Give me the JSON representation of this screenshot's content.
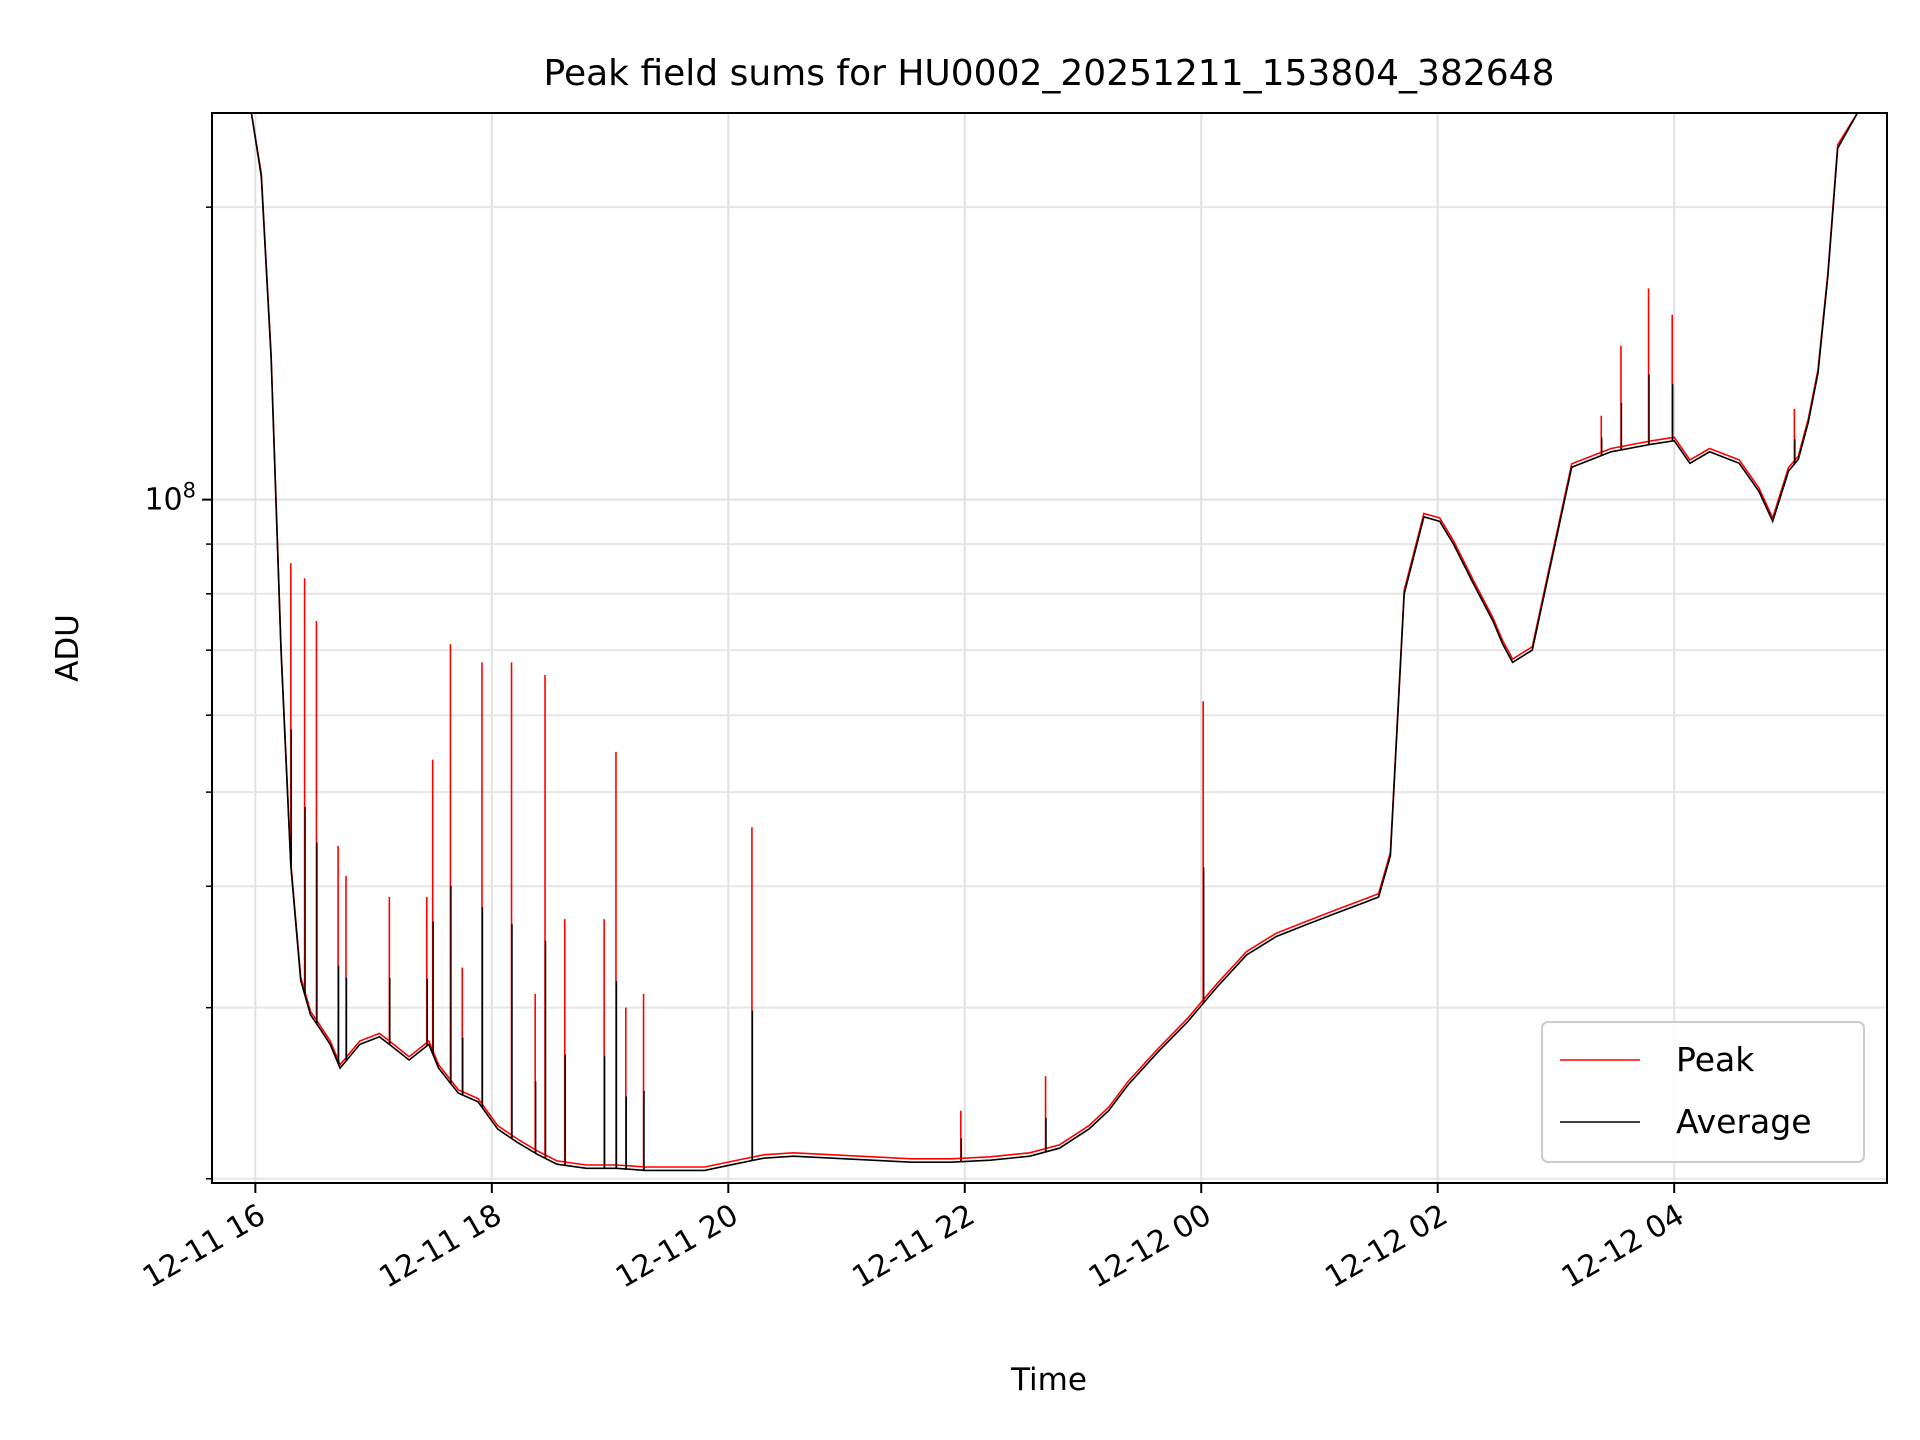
{
  "chart_data": {
    "type": "line",
    "title": "Peak field sums for HU0002_20251211_153804_382648",
    "xlabel": "Time",
    "ylabel": "ADU",
    "yscale": "log",
    "xlim": [
      "2025-12-11 15:38",
      "2025-12-12 05:48"
    ],
    "ylim": [
      19800000,
      250000000
    ],
    "x_ticks": [
      "12-11 16",
      "12-11 18",
      "12-11 20",
      "12-11 22",
      "12-12 00",
      "12-12 02",
      "12-12 04"
    ],
    "y_tick_labels": [
      "10^8"
    ],
    "grid": true,
    "legend": {
      "placement": "lower-right",
      "entries": [
        "Peak",
        "Average"
      ]
    },
    "colors": {
      "Peak": "#ff0000",
      "Average": "#000000"
    },
    "series": [
      {
        "name": "Average",
        "x": [
          "2025-12-11 15:58",
          "2025-12-11 16:03",
          "2025-12-11 16:08",
          "2025-12-11 16:13",
          "2025-12-11 16:18",
          "2025-12-11 16:23",
          "2025-12-11 16:28",
          "2025-12-11 16:33",
          "2025-12-11 16:38",
          "2025-12-11 16:43",
          "2025-12-11 16:53",
          "2025-12-11 17:03",
          "2025-12-11 17:08",
          "2025-12-11 17:18",
          "2025-12-11 17:28",
          "2025-12-11 17:33",
          "2025-12-11 17:43",
          "2025-12-11 17:53",
          "2025-12-11 18:03",
          "2025-12-11 18:13",
          "2025-12-11 18:23",
          "2025-12-11 18:33",
          "2025-12-11 18:48",
          "2025-12-11 19:03",
          "2025-12-11 19:18",
          "2025-12-11 19:33",
          "2025-12-11 19:48",
          "2025-12-11 20:03",
          "2025-12-11 20:18",
          "2025-12-11 20:33",
          "2025-12-11 20:53",
          "2025-12-11 21:13",
          "2025-12-11 21:33",
          "2025-12-11 21:53",
          "2025-12-11 22:13",
          "2025-12-11 22:33",
          "2025-12-11 22:48",
          "2025-12-11 23:03",
          "2025-12-11 23:13",
          "2025-12-11 23:23",
          "2025-12-11 23:38",
          "2025-12-11 23:53",
          "2025-12-12 00:08",
          "2025-12-12 00:23",
          "2025-12-12 00:38",
          "2025-12-12 00:53",
          "2025-12-12 01:08",
          "2025-12-12 01:23",
          "2025-12-12 01:30",
          "2025-12-12 01:36",
          "2025-12-12 01:43",
          "2025-12-12 01:53",
          "2025-12-12 02:01",
          "2025-12-12 02:08",
          "2025-12-12 02:18",
          "2025-12-12 02:28",
          "2025-12-12 02:33",
          "2025-12-12 02:38",
          "2025-12-12 02:48",
          "2025-12-12 02:53",
          "2025-12-12 03:08",
          "2025-12-12 03:28",
          "2025-12-12 03:48",
          "2025-12-12 04:00",
          "2025-12-12 04:08",
          "2025-12-12 04:18",
          "2025-12-12 04:33",
          "2025-12-12 04:43",
          "2025-12-12 04:50",
          "2025-12-12 04:58",
          "2025-12-12 05:03",
          "2025-12-12 05:08",
          "2025-12-12 05:13",
          "2025-12-12 05:18",
          "2025-12-12 05:23",
          "2025-12-12 05:33",
          "2025-12-12 05:48"
        ],
        "values": [
          250000000,
          215000000,
          140000000,
          70000000,
          42000000,
          32000000,
          29500000,
          28500000,
          27500000,
          26000000,
          27500000,
          28000000,
          27500000,
          26500000,
          27500000,
          26000000,
          24500000,
          24000000,
          22500000,
          21800000,
          21200000,
          20700000,
          20500000,
          20500000,
          20400000,
          20400000,
          20400000,
          20700000,
          21000000,
          21100000,
          21000000,
          20900000,
          20800000,
          20800000,
          20900000,
          21100000,
          21500000,
          22500000,
          23500000,
          25000000,
          27000000,
          29000000,
          31500000,
          34000000,
          35500000,
          36500000,
          37500000,
          38500000,
          39000000,
          43000000,
          80000000,
          96000000,
          95000000,
          90000000,
          82000000,
          75000000,
          71000000,
          68000000,
          70000000,
          78000000,
          108000000,
          112000000,
          114000000,
          115000000,
          109000000,
          112000000,
          109000000,
          102000000,
          95000000,
          107000000,
          110000000,
          120000000,
          135000000,
          170000000,
          230000000,
          250000000,
          250000000
        ]
      },
      {
        "name": "Peak",
        "spikes_x": [
          "2025-12-11 16:18",
          "2025-12-11 16:25",
          "2025-12-11 16:31",
          "2025-12-11 16:42",
          "2025-12-11 16:46",
          "2025-12-11 17:08",
          "2025-12-11 17:27",
          "2025-12-11 17:30",
          "2025-12-11 17:39",
          "2025-12-11 17:45",
          "2025-12-11 17:55",
          "2025-12-11 18:10",
          "2025-12-11 18:22",
          "2025-12-11 18:27",
          "2025-12-11 18:37",
          "2025-12-11 18:57",
          "2025-12-11 19:03",
          "2025-12-11 19:08",
          "2025-12-11 19:17",
          "2025-12-11 20:12",
          "2025-12-11 21:58",
          "2025-12-11 22:41",
          "2025-12-12 00:01",
          "2025-12-12 03:23",
          "2025-12-12 03:33",
          "2025-12-12 03:47",
          "2025-12-12 03:59",
          "2025-12-12 05:01"
        ],
        "spikes_values": [
          86000000,
          83000000,
          75000000,
          44000000,
          41000000,
          39000000,
          39000000,
          54000000,
          71000000,
          33000000,
          68000000,
          68000000,
          31000000,
          66000000,
          37000000,
          37000000,
          55000000,
          30000000,
          31000000,
          46000000,
          23500000,
          25500000,
          62000000,
          122000000,
          144000000,
          165000000,
          155000000,
          124000000
        ]
      }
    ]
  }
}
